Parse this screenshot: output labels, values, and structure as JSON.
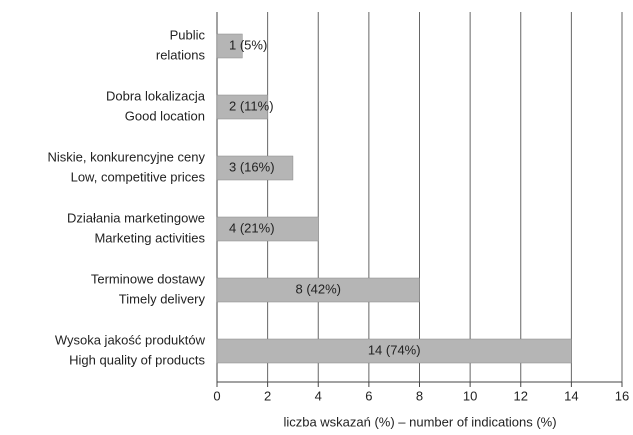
{
  "chart_data": {
    "type": "barh",
    "categories": [
      [
        "Public",
        "relations"
      ],
      [
        "Dobra lokalizacja",
        "Good location"
      ],
      [
        "Niskie, konkurencyjne ceny",
        "Low, competitive prices"
      ],
      [
        "Działania marketingowe",
        "Marketing activities"
      ],
      [
        "Terminowe dostawy",
        "Timely delivery"
      ],
      [
        "Wysoka jakość produktów",
        "High quality of products"
      ]
    ],
    "values": [
      1,
      2,
      3,
      4,
      8,
      14
    ],
    "value_labels": [
      "1 (5%)",
      "2 (11%)",
      "3 (16%)",
      "4 (21%)",
      "8 (42%)",
      "14 (74%)"
    ],
    "color": "#b5b5b5",
    "xlim": [
      0,
      16
    ],
    "xticks": [
      0,
      2,
      4,
      6,
      8,
      10,
      12,
      14,
      16
    ],
    "xlabel": "liczba wskazań (%) – number of indications (%)",
    "grid": true
  }
}
